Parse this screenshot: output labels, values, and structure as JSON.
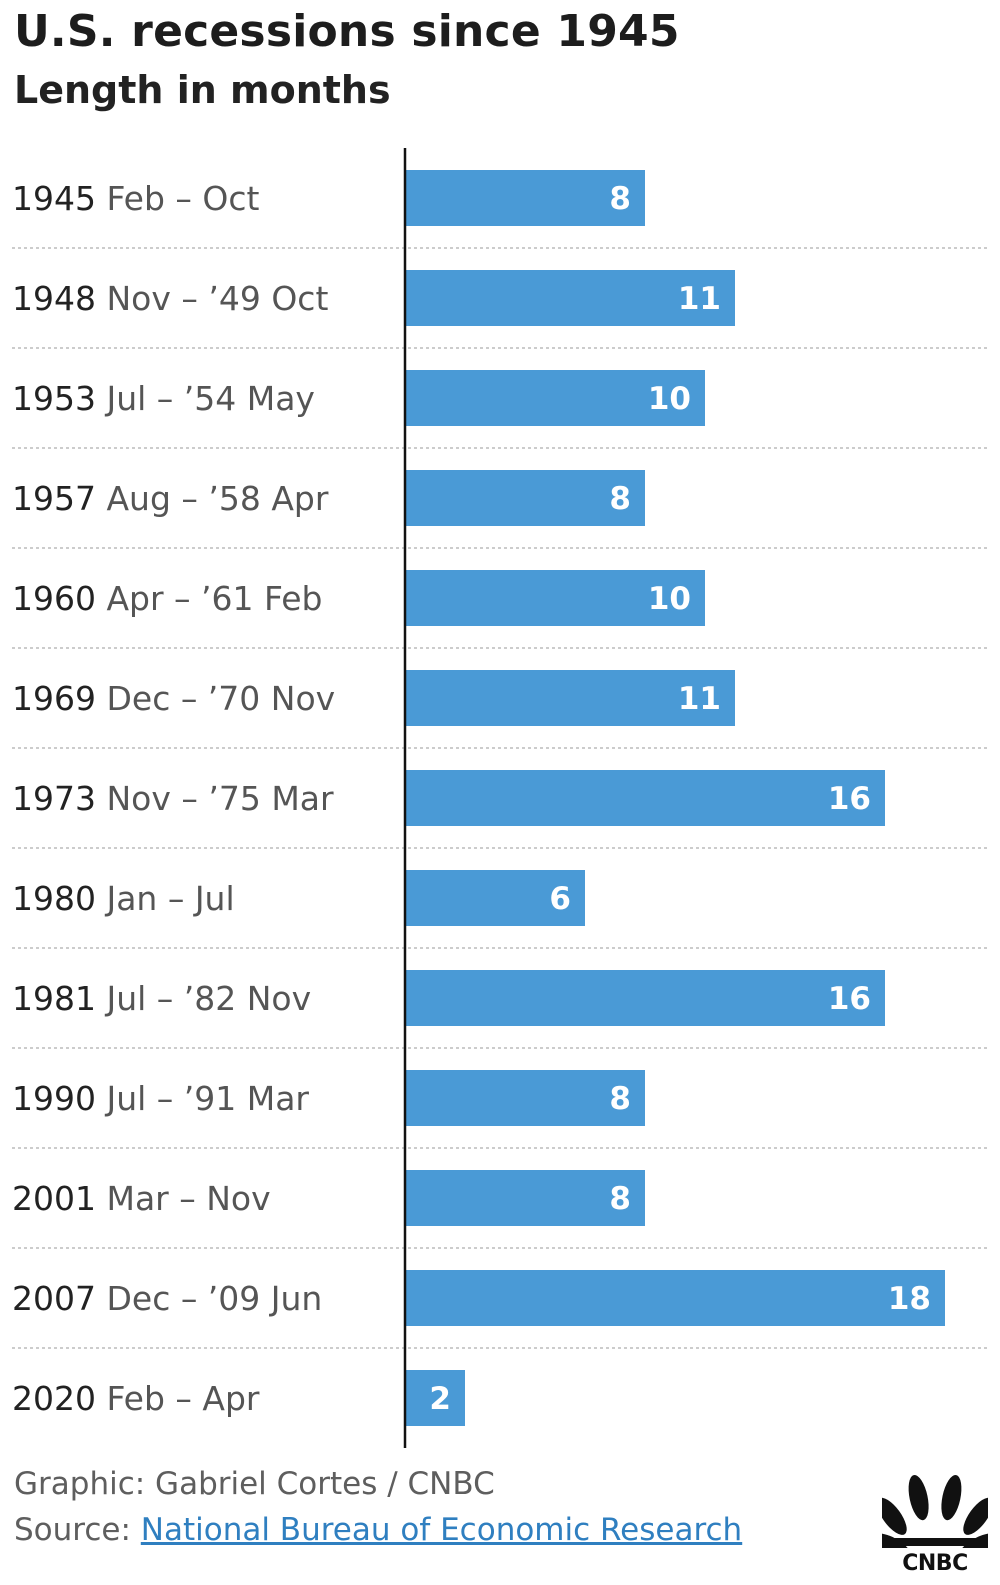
{
  "chart_data": {
    "type": "bar",
    "orientation": "horizontal",
    "title": "U.S. recessions since 1945",
    "subtitle": "Length in months",
    "categories": [
      {
        "year": "1945",
        "rest": " Feb – Oct"
      },
      {
        "year": "1948",
        "rest": " Nov – ’49 Oct"
      },
      {
        "year": "1953",
        "rest": " Jul – ’54 May"
      },
      {
        "year": "1957",
        "rest": " Aug – ’58 Apr"
      },
      {
        "year": "1960",
        "rest": " Apr – ’61 Feb"
      },
      {
        "year": "1969",
        "rest": " Dec – ’70 Nov"
      },
      {
        "year": "1973",
        "rest": " Nov – ’75 Mar"
      },
      {
        "year": "1980",
        "rest": " Jan – Jul"
      },
      {
        "year": "1981",
        "rest": " Jul – ’82 Nov"
      },
      {
        "year": "1990",
        "rest": " Jul – ’91 Mar"
      },
      {
        "year": "2001",
        "rest": " Mar – Nov"
      },
      {
        "year": "2007",
        "rest": " Dec – ’09 Jun"
      },
      {
        "year": "2020",
        "rest": " Feb – Apr"
      }
    ],
    "values": [
      8,
      11,
      10,
      8,
      10,
      11,
      16,
      6,
      16,
      8,
      8,
      18,
      2
    ],
    "data_labels": [
      "8",
      "11",
      "10",
      "8",
      "10",
      "11",
      "16",
      "6",
      "16",
      "8",
      "8",
      "18",
      "2"
    ],
    "xlim": [
      0,
      19
    ],
    "grid": "dotted row separators",
    "legend": "none",
    "colors": {
      "bar": "#4a9ad6",
      "axis": "#111111",
      "separator": "#bbbbbb"
    }
  },
  "footer": {
    "credit": "Graphic: Gabriel Cortes / CNBC",
    "source_prefix": "Source: ",
    "source_link": "National Bureau of Economic Research"
  },
  "logo": {
    "icon": "nbc-peacock-icon",
    "text": "CNBC",
    "colors": [
      "#111111"
    ]
  }
}
